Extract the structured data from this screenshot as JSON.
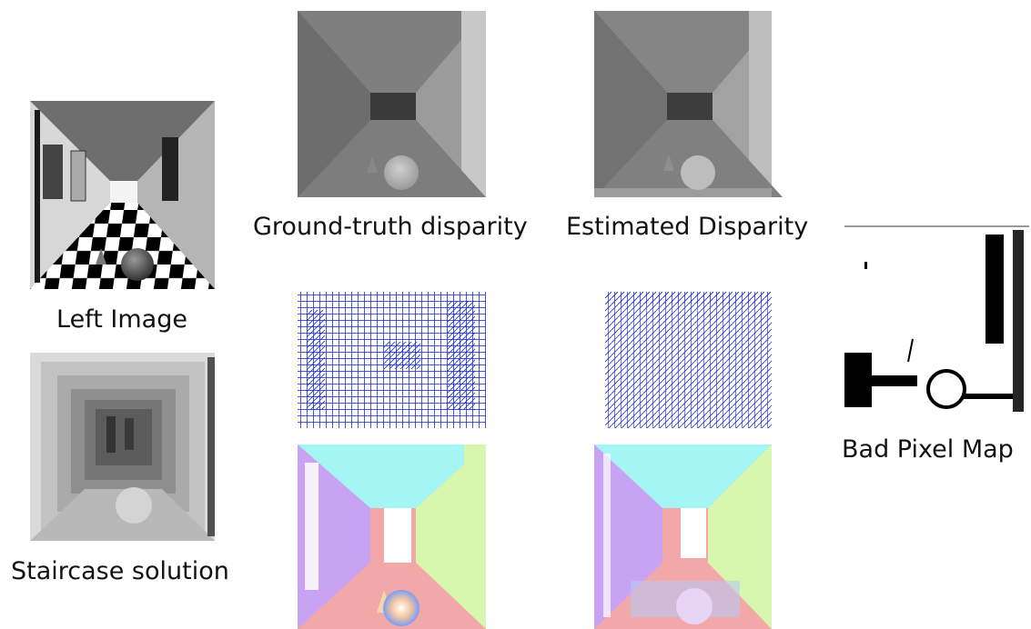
{
  "figure": {
    "captions": {
      "left_image": "Left Image",
      "staircase": "Staircase solution",
      "ground_truth": "Ground-truth disparity",
      "estimated": "Estimated Disparity",
      "bad_pixel": "Bad Pixel Map"
    },
    "colors": {
      "normal_ceiling": "#a6f5f5",
      "normal_left_wall": "#c9a3f3",
      "normal_right_wall": "#d8f7ae",
      "normal_floor": "#f2a8a8",
      "vector_blue": "#1a2bd6"
    }
  }
}
